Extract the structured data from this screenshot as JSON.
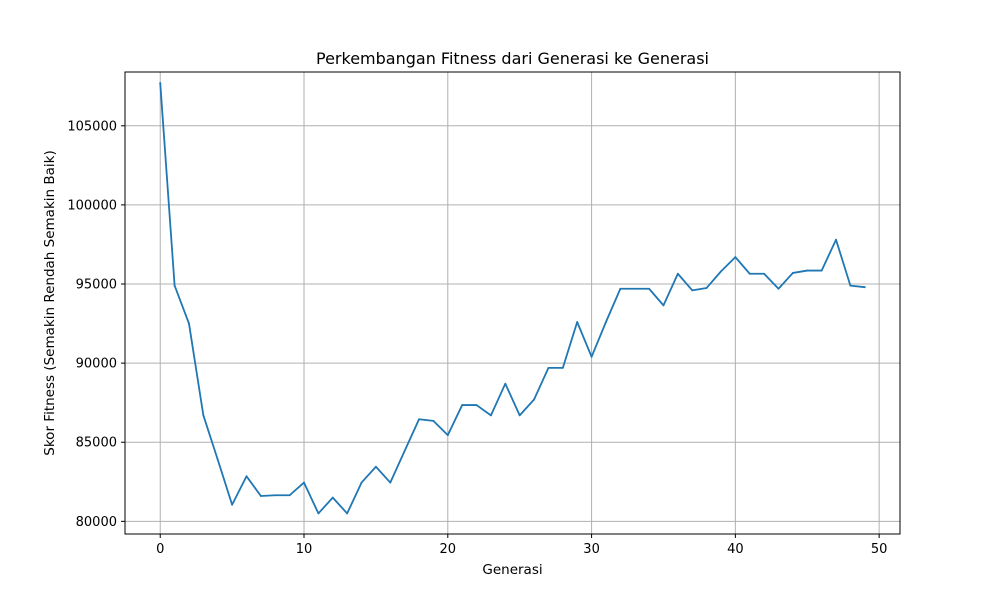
{
  "chart_data": {
    "type": "line",
    "title": "Perkembangan Fitness dari Generasi ke Generasi",
    "xlabel": "Generasi",
    "ylabel": "Skor Fitness (Semakin Rendah Semakin Baik)",
    "xlim": [
      -2.45,
      51.45
    ],
    "ylim": [
      79200,
      108400
    ],
    "xticks": [
      0,
      10,
      20,
      30,
      40,
      50
    ],
    "yticks": [
      80000,
      85000,
      90000,
      95000,
      100000,
      105000
    ],
    "grid": true,
    "line_color": "#1f77b4",
    "series": [
      {
        "x": [
          0,
          1,
          2,
          3,
          4,
          5,
          6,
          7,
          8,
          9,
          10,
          11,
          12,
          13,
          14,
          15,
          16,
          17,
          18,
          19,
          20,
          21,
          22,
          23,
          24,
          25,
          26,
          27,
          28,
          29,
          30,
          31,
          32,
          33,
          34,
          35,
          36,
          37,
          38,
          39,
          40,
          41,
          42,
          43,
          44,
          45,
          46,
          47,
          48,
          49
        ],
        "values": [
          107700,
          94900,
          92500,
          86700,
          83900,
          81050,
          82850,
          81600,
          81650,
          81650,
          82450,
          80500,
          81500,
          80500,
          82450,
          83450,
          82450,
          84450,
          86450,
          86350,
          85450,
          87350,
          87350,
          86700,
          88700,
          86700,
          87700,
          89700,
          89700,
          92600,
          90400,
          92600,
          94700,
          94700,
          94700,
          93650,
          95650,
          94600,
          94750,
          95800,
          96700,
          95650,
          95650,
          94700,
          95700,
          95850,
          95850,
          97800,
          94900,
          94800
        ]
      }
    ]
  }
}
